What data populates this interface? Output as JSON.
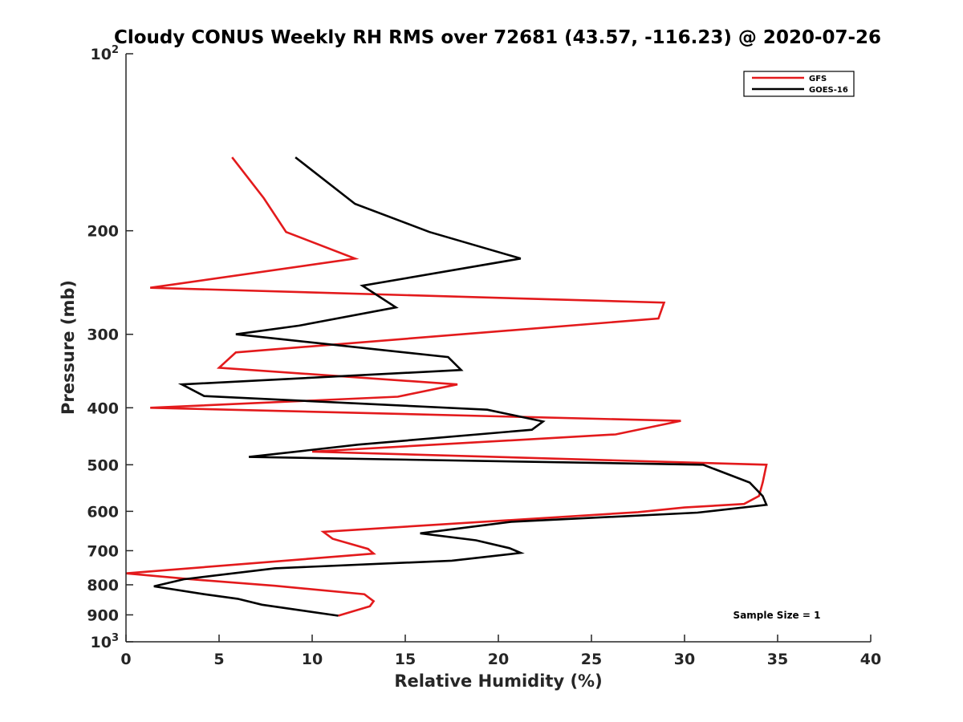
{
  "chart_data": {
    "type": "line",
    "title": "Cloudy CONUS Weekly RH RMS over 72681 (43.57, -116.23) @ 2020-07-26",
    "xlabel": "Relative Humidity (%)",
    "ylabel": "Pressure (mb)",
    "xlim": [
      0,
      40
    ],
    "ylim": [
      100,
      1000
    ],
    "y_scale": "log",
    "y_reversed": true,
    "grid": false,
    "legend_position": "top-right",
    "x_ticks": [
      0,
      5,
      10,
      15,
      20,
      25,
      30,
      35,
      40
    ],
    "x_tick_labels": [
      "0",
      "5",
      "10",
      "15",
      "20",
      "25",
      "30",
      "35",
      "40"
    ],
    "y_ticks": [
      100,
      200,
      300,
      400,
      500,
      600,
      700,
      800,
      900,
      1000
    ],
    "y_tick_labels": [
      {
        "base": "10",
        "exp": "2"
      },
      {
        "base": "200",
        "exp": ""
      },
      {
        "base": "300",
        "exp": ""
      },
      {
        "base": "400",
        "exp": ""
      },
      {
        "base": "500",
        "exp": ""
      },
      {
        "base": "600",
        "exp": ""
      },
      {
        "base": "700",
        "exp": ""
      },
      {
        "base": "800",
        "exp": ""
      },
      {
        "base": "900",
        "exp": ""
      },
      {
        "base": "10",
        "exp": "3"
      }
    ],
    "series": [
      {
        "name": "GFS",
        "color": "#e31a1c",
        "points": [
          [
            5.7,
            150
          ],
          [
            7.4,
            176
          ],
          [
            8.6,
            201
          ],
          [
            12.3,
            223
          ],
          [
            1.3,
            250
          ],
          [
            28.9,
            265
          ],
          [
            28.6,
            282
          ],
          [
            5.9,
            322
          ],
          [
            5.0,
            342
          ],
          [
            17.8,
            365
          ],
          [
            14.6,
            383
          ],
          [
            1.3,
            400
          ],
          [
            29.8,
            421
          ],
          [
            26.3,
            444
          ],
          [
            10.0,
            475
          ],
          [
            34.4,
            500
          ],
          [
            34.2,
            536
          ],
          [
            34.0,
            565
          ],
          [
            33.2,
            583
          ],
          [
            30.0,
            591
          ],
          [
            27.5,
            602
          ],
          [
            10.6,
            650
          ],
          [
            11.1,
            668
          ],
          [
            13.0,
            695
          ],
          [
            13.3,
            708
          ],
          [
            0.0,
            765
          ],
          [
            3.5,
            783
          ],
          [
            8.0,
            803
          ],
          [
            12.8,
            830
          ],
          [
            13.3,
            853
          ],
          [
            13.1,
            870
          ],
          [
            11.4,
            903
          ]
        ]
      },
      {
        "name": "GOES-16",
        "color": "#000000",
        "points": [
          [
            9.1,
            150
          ],
          [
            12.3,
            180
          ],
          [
            16.3,
            201
          ],
          [
            21.2,
            223
          ],
          [
            12.7,
            248
          ],
          [
            14.5,
            270
          ],
          [
            9.3,
            290
          ],
          [
            5.9,
            300
          ],
          [
            17.3,
            328
          ],
          [
            18.0,
            345
          ],
          [
            3.0,
            365
          ],
          [
            4.2,
            382
          ],
          [
            19.4,
            403
          ],
          [
            22.4,
            422
          ],
          [
            21.8,
            436
          ],
          [
            12.5,
            462
          ],
          [
            6.6,
            485
          ],
          [
            31.0,
            500
          ],
          [
            33.5,
            536
          ],
          [
            34.2,
            565
          ],
          [
            34.4,
            585
          ],
          [
            30.7,
            603
          ],
          [
            20.7,
            625
          ],
          [
            15.8,
            654
          ],
          [
            18.8,
            672
          ],
          [
            20.6,
            693
          ],
          [
            21.2,
            706
          ],
          [
            17.5,
            728
          ],
          [
            8.0,
            750
          ],
          [
            3.1,
            783
          ],
          [
            1.5,
            805
          ],
          [
            4.2,
            830
          ],
          [
            6.0,
            845
          ],
          [
            7.3,
            865
          ],
          [
            9.8,
            888
          ],
          [
            11.4,
            903
          ]
        ]
      }
    ],
    "annotation": "Sample Size = 1"
  }
}
